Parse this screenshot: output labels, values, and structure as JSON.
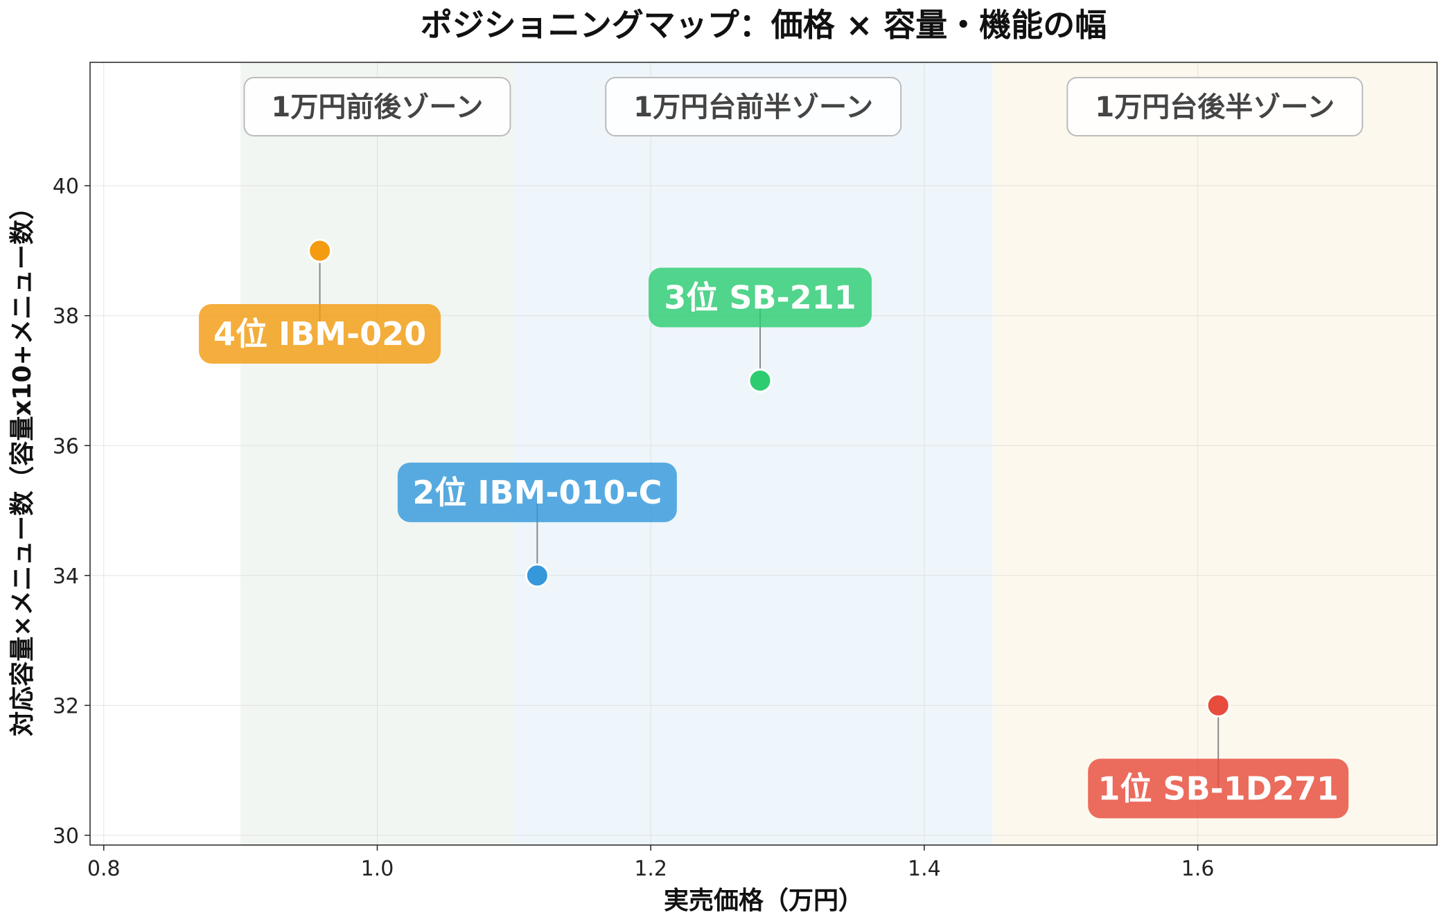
{
  "chart_data": {
    "type": "scatter",
    "title": "ポジショニングマップ：価格 × 容量・機能の幅",
    "xlabel": "実売価格（万円）",
    "ylabel": "対応容量×メニュー数（容量x10+メニュー数）",
    "xlim": [
      0.79,
      1.775
    ],
    "ylim": [
      29.85,
      41.9
    ],
    "xticks": [
      0.8,
      1.0,
      1.2,
      1.4,
      1.6
    ],
    "xtick_labels": [
      "0.8",
      "1.0",
      "1.2",
      "1.4",
      "1.6"
    ],
    "yticks": [
      30,
      32,
      34,
      36,
      38,
      40
    ],
    "ytick_labels": [
      "30",
      "32",
      "34",
      "36",
      "38",
      "40"
    ],
    "grid": true,
    "zones": [
      {
        "label": "1万円前後ゾーン",
        "x_range": [
          0.9,
          1.1
        ],
        "color": "#eef3ee"
      },
      {
        "label": "1万円台前半ゾーン",
        "x_range": [
          1.1,
          1.45
        ],
        "color": "#e8f3fa"
      },
      {
        "label": "1万円台後半ゾーン",
        "x_range": [
          1.45,
          1.775
        ],
        "color": "#fcf6e8"
      }
    ],
    "points": [
      {
        "label": "1位 SB-1D271",
        "x": 1.615,
        "y": 32,
        "color": "#e74c3c",
        "label_position": "below"
      },
      {
        "label": "2位 IBM-010-C",
        "x": 1.117,
        "y": 34,
        "color": "#3498db",
        "label_position": "above"
      },
      {
        "label": "3位 SB-211",
        "x": 1.28,
        "y": 37,
        "color": "#2ecc71",
        "label_position": "above"
      },
      {
        "label": "4位 IBM-020",
        "x": 0.958,
        "y": 39,
        "color": "#f39c12",
        "label_position": "below"
      }
    ]
  }
}
